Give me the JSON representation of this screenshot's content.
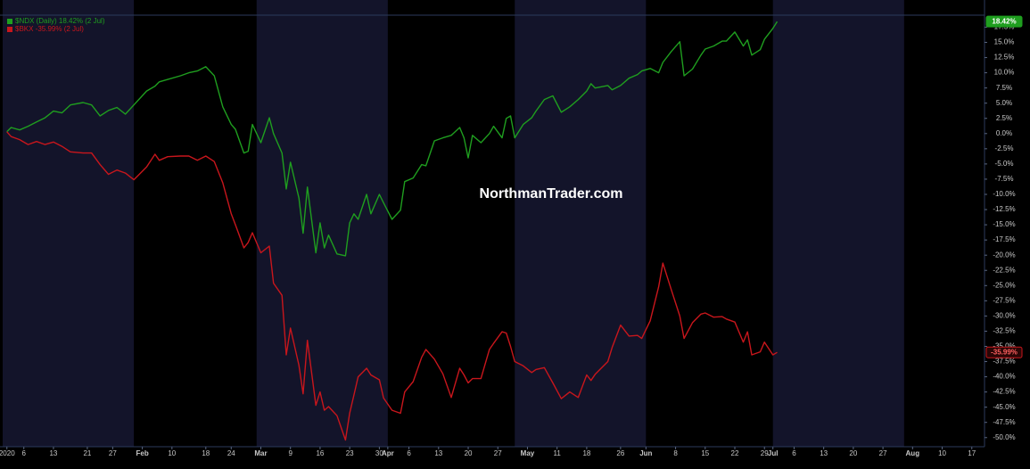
{
  "chart_data": {
    "type": "line",
    "watermark": "NorthmanTrader.com",
    "x": [
      "2020-01-02",
      "2020-01-03",
      "2020-01-05",
      "2020-01-07",
      "2020-01-09",
      "2020-01-11",
      "2020-01-13",
      "2020-01-15",
      "2020-01-17",
      "2020-01-20",
      "2020-01-22",
      "2020-01-24",
      "2020-01-26",
      "2020-01-28",
      "2020-01-30",
      "2020-02-01",
      "2020-02-04",
      "2020-02-06",
      "2020-02-07",
      "2020-02-09",
      "2020-02-12",
      "2020-02-14",
      "2020-02-16",
      "2020-02-18",
      "2020-02-20",
      "2020-02-22",
      "2020-02-24",
      "2020-02-25",
      "2020-02-27",
      "2020-02-28",
      "2020-02-29",
      "2020-03-02",
      "2020-03-04",
      "2020-03-05",
      "2020-03-07",
      "2020-03-08",
      "2020-03-09",
      "2020-03-11",
      "2020-03-12",
      "2020-03-13",
      "2020-03-15",
      "2020-03-16",
      "2020-03-17",
      "2020-03-18",
      "2020-03-20",
      "2020-03-22",
      "2020-03-23",
      "2020-03-24",
      "2020-03-25",
      "2020-03-27",
      "2020-03-28",
      "2020-03-30",
      "2020-03-31",
      "2020-04-02",
      "2020-04-04",
      "2020-04-05",
      "2020-04-07",
      "2020-04-09",
      "2020-04-10",
      "2020-04-12",
      "2020-04-14",
      "2020-04-16",
      "2020-04-18",
      "2020-04-19",
      "2020-04-20",
      "2020-04-21",
      "2020-04-23",
      "2020-04-25",
      "2020-04-26",
      "2020-04-28",
      "2020-04-29",
      "2020-04-30",
      "2020-05-01",
      "2020-05-03",
      "2020-05-05",
      "2020-05-06",
      "2020-05-08",
      "2020-05-10",
      "2020-05-12",
      "2020-05-14",
      "2020-05-16",
      "2020-05-18",
      "2020-05-19",
      "2020-05-20",
      "2020-05-23",
      "2020-05-24",
      "2020-05-26",
      "2020-05-28",
      "2020-05-30",
      "2020-05-31",
      "2020-06-02",
      "2020-06-04",
      "2020-06-05",
      "2020-06-07",
      "2020-06-09",
      "2020-06-10",
      "2020-06-12",
      "2020-06-14",
      "2020-06-15",
      "2020-06-17",
      "2020-06-19",
      "2020-06-20",
      "2020-06-22",
      "2020-06-24",
      "2020-06-25",
      "2020-06-26",
      "2020-06-28",
      "2020-06-29",
      "2020-07-01",
      "2020-07-02"
    ],
    "series": [
      {
        "name": "$NDX (Daily) 18.42% (2 Jul)",
        "color": "#1f9e1f",
        "end_label": "18.42%",
        "values": [
          0.3,
          1.0,
          0.6,
          1.2,
          1.9,
          2.6,
          3.7,
          3.4,
          4.7,
          5.1,
          4.7,
          2.9,
          3.8,
          4.3,
          3.2,
          4.7,
          7.0,
          7.8,
          8.5,
          8.9,
          9.5,
          10.0,
          10.3,
          11.0,
          9.5,
          4.4,
          1.5,
          0.7,
          -3.2,
          -2.9,
          1.5,
          -1.5,
          2.6,
          0,
          -3.2,
          -9.1,
          -4.7,
          -10.6,
          -16.4,
          -8.8,
          -19.6,
          -14.7,
          -18.8,
          -16.7,
          -19.8,
          -20.1,
          -14.7,
          -13.2,
          -14.1,
          -10.0,
          -13.2,
          -10.0,
          -11.4,
          -14.1,
          -12.6,
          -7.9,
          -7.3,
          -5.1,
          -5.3,
          -1.2,
          -0.7,
          -0.3,
          1.0,
          -0.7,
          -4.0,
          -0.3,
          -1.5,
          0,
          1.2,
          -0.7,
          2.5,
          2.9,
          -0.7,
          1.5,
          2.6,
          3.7,
          5.6,
          6.2,
          3.5,
          4.4,
          5.6,
          7.0,
          8.2,
          7.5,
          7.9,
          7.2,
          7.9,
          9.1,
          9.7,
          10.3,
          10.7,
          10.0,
          11.7,
          13.5,
          15.1,
          9.5,
          10.6,
          12.9,
          13.9,
          14.4,
          15.2,
          15.2,
          16.7,
          14.4,
          15.4,
          12.9,
          13.8,
          15.5,
          17.3,
          18.42
        ]
      },
      {
        "name": "$BKX -35.99% (2 Jul)",
        "color": "#c8161c",
        "end_label": "-35.99%",
        "values": [
          0.3,
          -0.5,
          -1.0,
          -1.8,
          -1.3,
          -1.8,
          -1.4,
          -2.1,
          -3.0,
          -3.2,
          -3.2,
          -5.1,
          -6.7,
          -6.0,
          -6.5,
          -7.6,
          -5.5,
          -3.4,
          -4.4,
          -3.8,
          -3.7,
          -3.7,
          -4.4,
          -3.7,
          -4.6,
          -8.1,
          -13.2,
          -15.0,
          -18.8,
          -17.9,
          -16.3,
          -19.6,
          -18.5,
          -24.6,
          -26.6,
          -36.4,
          -32.0,
          -38.1,
          -42.8,
          -34.0,
          -44.7,
          -42.5,
          -45.5,
          -44.9,
          -46.4,
          -50.4,
          -46.0,
          -43.0,
          -40.0,
          -38.6,
          -39.7,
          -40.5,
          -43.5,
          -45.5,
          -46.0,
          -42.5,
          -40.8,
          -36.8,
          -35.5,
          -37.1,
          -39.5,
          -43.4,
          -38.6,
          -39.7,
          -41.0,
          -40.3,
          -40.3,
          -35.5,
          -34.5,
          -32.6,
          -32.8,
          -35.0,
          -37.5,
          -38.2,
          -39.3,
          -38.8,
          -38.5,
          -41.0,
          -43.6,
          -42.5,
          -43.4,
          -39.7,
          -40.6,
          -39.6,
          -37.5,
          -35.2,
          -31.5,
          -33.3,
          -33.2,
          -33.7,
          -30.8,
          -25.2,
          -21.3,
          -25.7,
          -30.0,
          -33.7,
          -31.1,
          -29.7,
          -29.5,
          -30.2,
          -30.1,
          -30.5,
          -31.0,
          -34.3,
          -32.6,
          -36.4,
          -35.9,
          -34.3,
          -36.4,
          -35.99
        ]
      }
    ],
    "xlim": [
      "2020-01-01",
      "2020-08-20"
    ],
    "xticks": [
      {
        "value": "2020-01-02",
        "label": "2020"
      },
      {
        "value": "2020-01-06",
        "label": "6"
      },
      {
        "value": "2020-01-13",
        "label": "13"
      },
      {
        "value": "2020-01-21",
        "label": "21"
      },
      {
        "value": "2020-01-27",
        "label": "27"
      },
      {
        "value": "2020-02-03",
        "label": "Feb"
      },
      {
        "value": "2020-02-10",
        "label": "10"
      },
      {
        "value": "2020-02-18",
        "label": "18"
      },
      {
        "value": "2020-02-24",
        "label": "24"
      },
      {
        "value": "2020-03-02",
        "label": "Mar"
      },
      {
        "value": "2020-03-09",
        "label": "9"
      },
      {
        "value": "2020-03-16",
        "label": "16"
      },
      {
        "value": "2020-03-23",
        "label": "23"
      },
      {
        "value": "2020-03-30",
        "label": "30"
      },
      {
        "value": "2020-04-01",
        "label": "Apr"
      },
      {
        "value": "2020-04-06",
        "label": "6"
      },
      {
        "value": "2020-04-13",
        "label": "13"
      },
      {
        "value": "2020-04-20",
        "label": "20"
      },
      {
        "value": "2020-04-27",
        "label": "27"
      },
      {
        "value": "2020-05-04",
        "label": "May"
      },
      {
        "value": "2020-05-11",
        "label": "11"
      },
      {
        "value": "2020-05-18",
        "label": "18"
      },
      {
        "value": "2020-05-26",
        "label": "26"
      },
      {
        "value": "2020-06-01",
        "label": "Jun"
      },
      {
        "value": "2020-06-08",
        "label": "8"
      },
      {
        "value": "2020-06-15",
        "label": "15"
      },
      {
        "value": "2020-06-22",
        "label": "22"
      },
      {
        "value": "2020-06-29",
        "label": "29"
      },
      {
        "value": "2020-07-01",
        "label": "Jul"
      },
      {
        "value": "2020-07-06",
        "label": "6"
      },
      {
        "value": "2020-07-13",
        "label": "13"
      },
      {
        "value": "2020-07-20",
        "label": "20"
      },
      {
        "value": "2020-07-27",
        "label": "27"
      },
      {
        "value": "2020-08-03",
        "label": "Aug"
      },
      {
        "value": "2020-08-10",
        "label": "10"
      },
      {
        "value": "2020-08-17",
        "label": "17"
      }
    ],
    "ylim": [
      -51.5,
      20.5
    ],
    "yticks": [
      {
        "value": 17.5,
        "label": "17.5%"
      },
      {
        "value": 15,
        "label": "15.0%"
      },
      {
        "value": 12.5,
        "label": "12.5%"
      },
      {
        "value": 10,
        "label": "10.0%"
      },
      {
        "value": 7.5,
        "label": "7.5%"
      },
      {
        "value": 5,
        "label": "5.0%"
      },
      {
        "value": 2.5,
        "label": "2.5%"
      },
      {
        "value": 0,
        "label": "0.0%"
      },
      {
        "value": -2.5,
        "label": "-2.5%"
      },
      {
        "value": -5,
        "label": "-5.0%"
      },
      {
        "value": -7.5,
        "label": "-7.5%"
      },
      {
        "value": -10,
        "label": "-10.0%"
      },
      {
        "value": -12.5,
        "label": "-12.5%"
      },
      {
        "value": -15,
        "label": "-15.0%"
      },
      {
        "value": -17.5,
        "label": "-17.5%"
      },
      {
        "value": -20,
        "label": "-20.0%"
      },
      {
        "value": -22.5,
        "label": "-22.5%"
      },
      {
        "value": -25,
        "label": "-25.0%"
      },
      {
        "value": -27.5,
        "label": "-27.5%"
      },
      {
        "value": -30,
        "label": "-30.0%"
      },
      {
        "value": -32.5,
        "label": "-32.5%"
      },
      {
        "value": -35,
        "label": "-35.0%"
      },
      {
        "value": -37.5,
        "label": "-37.5%"
      },
      {
        "value": -40,
        "label": "-40.0%"
      },
      {
        "value": -42.5,
        "label": "-42.5%"
      },
      {
        "value": -45,
        "label": "-45.0%"
      },
      {
        "value": -47.5,
        "label": "-47.5%"
      },
      {
        "value": -50,
        "label": "-50.0%"
      }
    ],
    "grid": false
  }
}
